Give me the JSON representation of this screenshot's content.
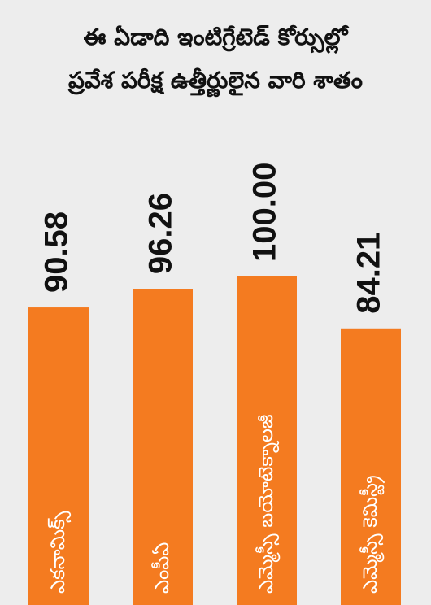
{
  "chart_data": {
    "type": "bar",
    "title": [
      "ఈ ఏడాది ఇంటిగ్రేటెడ్ కోర్సుల్లో",
      "ప్రవేశ పరీక్ష ఉత్తీర్ణులైన వారి శాతం"
    ],
    "categories": [
      "ఎకనామిక్స్",
      "ఎంపీఏ",
      "ఎమ్మెస్సీ బయోటెక్నాలజీ",
      "ఎమ్మెస్సీ కెమిస్ట్రీ"
    ],
    "values": [
      90.58,
      96.26,
      100,
      84.21
    ],
    "value_labels": [
      "90.58",
      "96.26",
      "100.00",
      "84.21"
    ],
    "color": "#f47b20"
  }
}
